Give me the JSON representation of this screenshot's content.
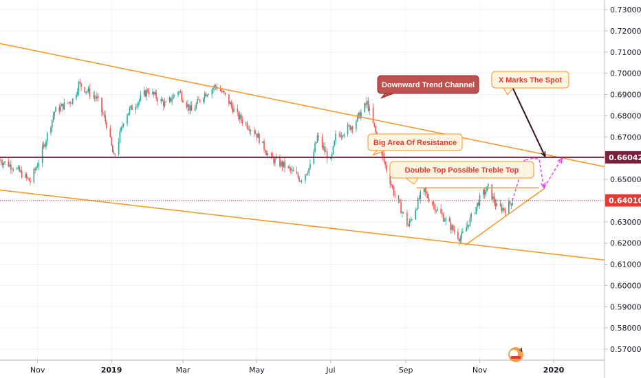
{
  "chart_data": {
    "type": "candlestick",
    "ylim": [
      0.565,
      0.735
    ],
    "yticks": [
      "0.57000",
      "0.58000",
      "0.59000",
      "0.60000",
      "0.61000",
      "0.62000",
      "0.63000",
      "0.64000",
      "0.65000",
      "0.66000",
      "0.67000",
      "0.68000",
      "0.69000",
      "0.70000",
      "0.71000",
      "0.72000",
      "0.73000"
    ],
    "ytick_values": [
      0.57,
      0.58,
      0.59,
      0.6,
      0.61,
      0.62,
      0.63,
      0.64,
      0.65,
      0.66,
      0.67,
      0.68,
      0.69,
      0.7,
      0.71,
      0.72,
      0.73
    ],
    "xticks": [
      "Nov",
      "2019",
      "Mar",
      "May",
      "Jul",
      "Sep",
      "Nov",
      "2020"
    ],
    "xtick_dates": [
      "2018-11-01",
      "2019-01-01",
      "2019-03-01",
      "2019-05-01",
      "2019-07-01",
      "2019-09-01",
      "2019-11-01",
      "2020-01-01"
    ],
    "x_range": [
      "2018-10-01",
      "2020-02-12"
    ],
    "price_path": [
      [
        "2018-10-01",
        0.659
      ],
      [
        "2018-10-12",
        0.656
      ],
      [
        "2018-10-26",
        0.649
      ],
      [
        "2018-11-03",
        0.66
      ],
      [
        "2018-11-15",
        0.682
      ],
      [
        "2018-12-01",
        0.688
      ],
      [
        "2018-12-05",
        0.695
      ],
      [
        "2018-12-20",
        0.688
      ],
      [
        "2018-12-28",
        0.676
      ],
      [
        "2019-01-03",
        0.66
      ],
      [
        "2019-01-12",
        0.68
      ],
      [
        "2019-01-31",
        0.692
      ],
      [
        "2019-02-15",
        0.685
      ],
      [
        "2019-02-25",
        0.692
      ],
      [
        "2019-03-08",
        0.682
      ],
      [
        "2019-03-18",
        0.69
      ],
      [
        "2019-03-28",
        0.694
      ],
      [
        "2019-04-04",
        0.69
      ],
      [
        "2019-04-15",
        0.68
      ],
      [
        "2019-04-30",
        0.672
      ],
      [
        "2019-05-12",
        0.66
      ],
      [
        "2019-05-25",
        0.656
      ],
      [
        "2019-06-06",
        0.65
      ],
      [
        "2019-06-14",
        0.656
      ],
      [
        "2019-06-20",
        0.67
      ],
      [
        "2019-07-01",
        0.658
      ],
      [
        "2019-07-05",
        0.67
      ],
      [
        "2019-07-20",
        0.676
      ],
      [
        "2019-07-31",
        0.686
      ],
      [
        "2019-08-12",
        0.662
      ],
      [
        "2019-08-22",
        0.644
      ],
      [
        "2019-09-03",
        0.628
      ],
      [
        "2019-09-15",
        0.645
      ],
      [
        "2019-09-25",
        0.637
      ],
      [
        "2019-10-05",
        0.63
      ],
      [
        "2019-10-16",
        0.622
      ],
      [
        "2019-10-25",
        0.632
      ],
      [
        "2019-11-02",
        0.642
      ],
      [
        "2019-11-08",
        0.646
      ],
      [
        "2019-11-15",
        0.637
      ],
      [
        "2019-11-22",
        0.636
      ],
      [
        "2019-11-28",
        0.6401
      ]
    ],
    "lines": [
      {
        "name": "channel-top",
        "from": [
          "2018-10-01",
          0.714
        ],
        "to": [
          "2020-02-12",
          0.656
        ],
        "color": "#f7931e"
      },
      {
        "name": "channel-bottom",
        "from": [
          "2018-10-01",
          0.645
        ],
        "to": [
          "2020-02-12",
          0.612
        ],
        "color": "#f7931e"
      },
      {
        "name": "resistance",
        "from": [
          "2018-10-01",
          0.6604
        ],
        "to": [
          "2020-02-12",
          0.6604
        ],
        "color": "#7b1f3b"
      },
      {
        "name": "double-top",
        "from": [
          "2019-09-10",
          0.646
        ],
        "to": [
          "2019-12-20",
          0.646
        ],
        "color": "#f7931e"
      },
      {
        "name": "rising-support",
        "from": [
          "2019-10-20",
          0.619
        ],
        "to": [
          "2019-12-25",
          0.646
        ],
        "color": "#f7931e"
      }
    ],
    "price_line": {
      "value": 0.6401,
      "label": "0.64010",
      "color": "#e53935"
    },
    "resistance_label": {
      "value": 0.6604,
      "label": "0.66042",
      "color": "#7b1f3b"
    },
    "projection": [
      [
        "2019-11-28",
        0.64
      ],
      [
        "2019-12-08",
        0.659
      ],
      [
        "2019-12-15",
        0.66
      ],
      [
        "2019-12-20",
        0.6595
      ],
      [
        "2019-12-24",
        0.646
      ],
      [
        "2020-01-08",
        0.66
      ]
    ],
    "arrow": {
      "from": [
        "2019-11-25",
        0.697
      ],
      "to": [
        "2019-12-25",
        0.6607
      ]
    },
    "annotations": [
      {
        "text": "Downward Trend Channel",
        "style": "dark"
      },
      {
        "text": "X Marks The Spot",
        "style": "light"
      },
      {
        "text": "Big Area Of Resistance",
        "style": "light"
      },
      {
        "text": "Double Top Possible Treble Top",
        "style": "light"
      }
    ],
    "grid": true
  },
  "colors": {
    "up": "#26a69a",
    "down": "#ef5350",
    "grid": "#f0f3fa",
    "orange": "#f7931e",
    "maroon": "#7b1f3b",
    "magenta": "#e040fb",
    "callout_bg": "#fdf5df",
    "callout_border": "#f7931e",
    "callout_text": "#e53935",
    "dark_bg": "#c0504d",
    "dark_text": "#ffffff",
    "arrow": "#3b0f1e"
  }
}
